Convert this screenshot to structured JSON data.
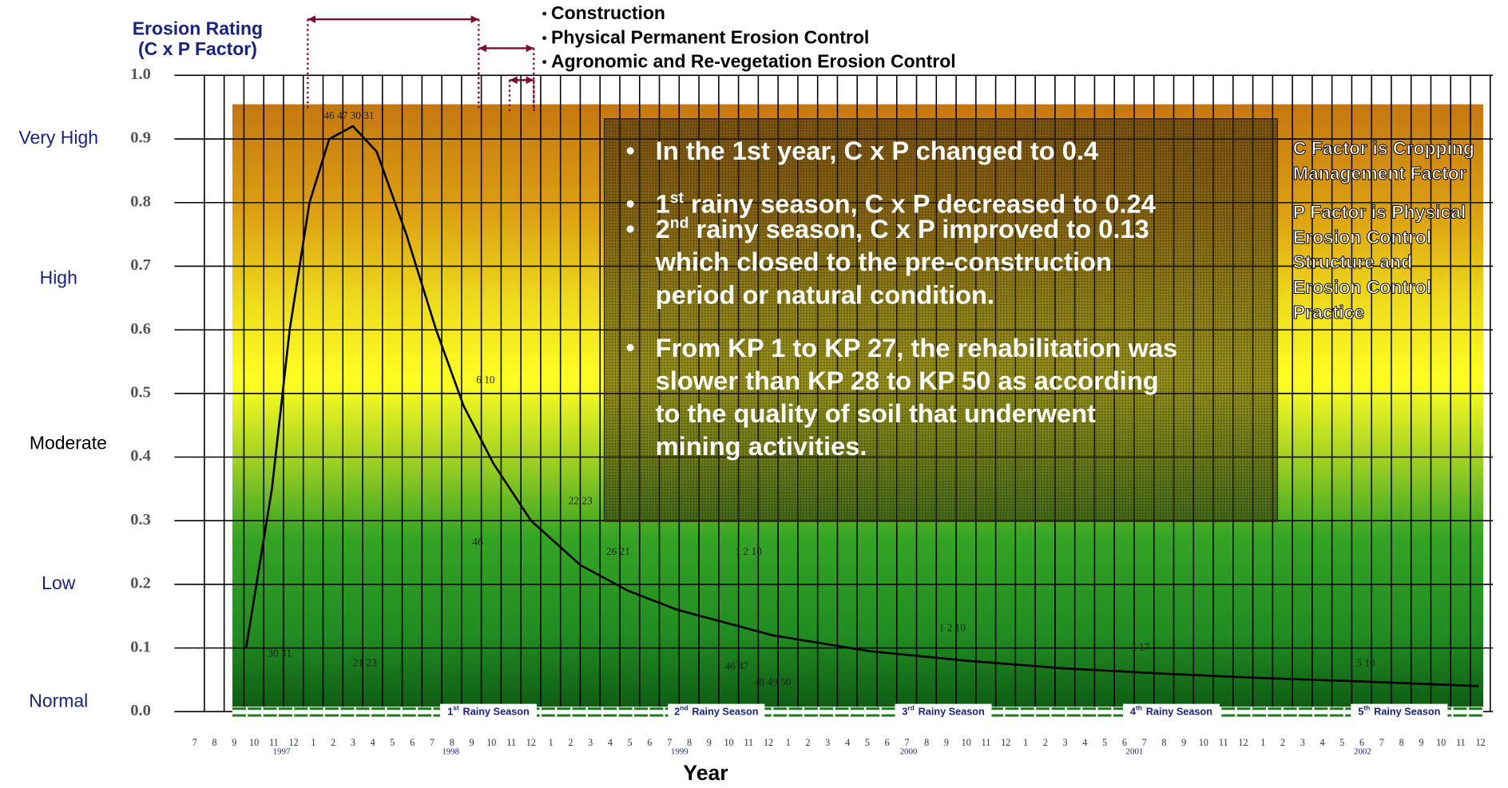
{
  "chart_data": {
    "type": "line",
    "title": [
      "Erosion Rating",
      "(C x P Factor)"
    ],
    "x_label": "Year",
    "ylim": [
      0,
      1
    ],
    "yticks": [
      {
        "value": 0,
        "label": "0.0"
      },
      {
        "value": 0.1,
        "label": "0.1"
      },
      {
        "value": 0.2,
        "label": "0.2"
      },
      {
        "value": 0.3,
        "label": "0.3"
      },
      {
        "value": 0.4,
        "label": "0.4"
      },
      {
        "value": 0.5,
        "label": "0.5"
      },
      {
        "value": 0.6,
        "label": "0.6"
      },
      {
        "value": 0.7,
        "label": "0.7"
      },
      {
        "value": 0.8,
        "label": "0.8"
      },
      {
        "value": 0.9,
        "label": "0.9"
      },
      {
        "value": 1,
        "label": "1.0"
      }
    ],
    "rating_levels": [
      "Very High",
      "High",
      "Moderate",
      "Low",
      "Normal"
    ],
    "months": [
      7,
      8,
      9,
      10,
      11,
      12,
      1,
      2,
      3,
      4,
      5,
      6,
      7,
      8,
      9,
      10,
      11,
      12,
      1,
      2,
      3,
      4,
      5,
      6,
      7,
      8,
      9,
      10,
      11,
      12,
      1,
      2,
      3,
      4,
      5,
      6,
      7,
      8,
      9,
      10,
      11,
      12,
      1,
      2,
      3,
      4,
      5,
      6,
      7,
      8,
      9,
      10,
      11,
      12,
      1,
      2,
      3,
      4,
      5,
      6,
      7,
      8,
      9,
      10,
      11,
      12
    ],
    "years": [
      "1997",
      "1998",
      "1999",
      "2000",
      "2001",
      "2002"
    ],
    "xlim": [
      0,
      65
    ],
    "phases": [
      "Construction",
      "Physical Permanent Erosion Control",
      "Agronomic and Re-vegetation Erosion Control"
    ],
    "rainy_seasons": [
      {
        "number": "1",
        "suffix": "st",
        "text": "Rainy Season"
      },
      {
        "number": "2",
        "suffix": "nd",
        "text": "Rainy Season"
      },
      {
        "number": "3",
        "suffix": "rd",
        "text": "Rainy Season"
      },
      {
        "number": "4",
        "suffix": "th",
        "text": "Rainy Season"
      },
      {
        "number": "5",
        "suffix": "th",
        "text": "Rainy Season"
      }
    ],
    "series": [
      {
        "color": "#000000",
        "x": [
          2.6,
          3.9,
          4.8,
          5.8,
          6.8,
          8.0,
          9.2,
          10.7,
          12.2,
          13.6,
          15.1,
          17.0,
          19.5,
          21.9,
          24.4,
          29.2,
          34.1,
          39.0,
          43.9,
          48.8,
          53.7,
          58.5,
          64.9
        ],
        "values": [
          0.1,
          0.35,
          0.6,
          0.8,
          0.9,
          0.92,
          0.88,
          0.75,
          0.6,
          0.48,
          0.39,
          0.3,
          0.23,
          0.19,
          0.16,
          0.12,
          0.095,
          0.08,
          0.068,
          0.06,
          0.053,
          0.048,
          0.04
        ]
      }
    ],
    "kp_points": [
      {
        "label": "46 47 30 31",
        "x": 7.8,
        "y": 0.935
      },
      {
        "label": "30 31",
        "x": 4.3,
        "y": 0.09
      },
      {
        "label": "21 23",
        "x": 8.6,
        "y": 0.075
      },
      {
        "label": "6 10",
        "x": 14.7,
        "y": 0.52
      },
      {
        "label": "46",
        "x": 14.3,
        "y": 0.265
      },
      {
        "label": "22 23",
        "x": 19.5,
        "y": 0.33
      },
      {
        "label": "26 21",
        "x": 21.4,
        "y": 0.25
      },
      {
        "label": "1 2 10",
        "x": 28.0,
        "y": 0.25
      },
      {
        "label": "46 47",
        "x": 27.4,
        "y": 0.07
      },
      {
        "label": "48 49 50",
        "x": 29.2,
        "y": 0.045
      },
      {
        "label": "1 2 10",
        "x": 38.3,
        "y": 0.13
      },
      {
        "label": "1 17",
        "x": 47.8,
        "y": 0.1
      },
      {
        "label": "1 5 10",
        "x": 59.0,
        "y": 0.075
      }
    ],
    "notes": [
      [
        [
          "In the 1st year,    C x P changed to 0.4"
        ]
      ],
      [
        [
          "1",
          {
            "sup": "st"
          },
          " rainy season, C x P decreased to 0.24"
        ]
      ],
      [
        [
          "2",
          {
            "sup": "nd"
          },
          " rainy season, C x P improved to 0.13"
        ],
        [
          "which closed to the pre-construction"
        ],
        [
          "period or natural condition."
        ]
      ],
      [
        [
          "From KP 1 to KP 27, the rehabilitation was"
        ],
        [
          "slower than KP 28 to KP 50  as according"
        ],
        [
          "to the quality of soil that underwent"
        ],
        [
          "mining activities."
        ]
      ]
    ],
    "definitions": [
      [
        "C Factor is Cropping",
        "Management Factor"
      ],
      [
        "P Factor is Physical",
        "Erosion Control",
        "Structure and",
        "Erosion Control",
        "Practice"
      ]
    ]
  }
}
